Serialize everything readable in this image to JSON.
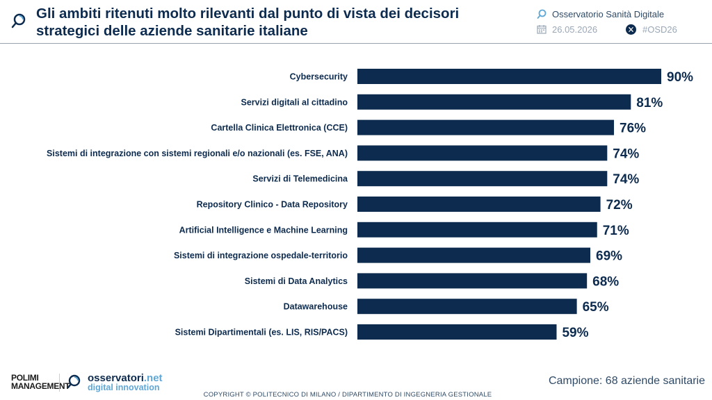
{
  "header": {
    "title": "Gli ambiti ritenuti molto rilevanti dal punto di vista dei decisori strategici delle aziende sanitarie italiane",
    "observatory": "Osservatorio Sanità Digitale",
    "date": "26.05.2026",
    "hashtag": "#OSD26"
  },
  "footer": {
    "polimi_line1": "POLIMI",
    "polimi_small": "GRADUATE SCHOOL OF",
    "polimi_line2": "MANAGEMENT",
    "osservatori_name": "osservatori",
    "osservatori_net": ".net",
    "osservatori_tag": "digital innovation",
    "sample": "Campione: 68 aziende sanitarie",
    "copyright": "COPYRIGHT © POLITECNICO DI MILANO / DIPARTIMENTO DI INGEGNERIA GESTIONALE"
  },
  "colors": {
    "bar": "#0d2b4e",
    "accent": "#5fa7d6"
  },
  "chart_data": {
    "type": "bar",
    "orientation": "horizontal",
    "title": "",
    "xlabel": "",
    "ylabel": "",
    "xlim": [
      0,
      100
    ],
    "categories": [
      "Cybersecurity",
      "Servizi digitali al cittadino",
      "Cartella Clinica Elettronica (CCE)",
      "Sistemi di integrazione con sistemi regionali e/o nazionali (es. FSE, ANA)",
      "Servizi di Telemedicina",
      "Repository Clinico - Data Repository",
      "Artificial Intelligence e Machine Learning",
      "Sistemi di integrazione ospedale-territorio",
      "Sistemi di Data Analytics",
      "Datawarehouse",
      "Sistemi Dipartimentali (es. LIS, RIS/PACS)"
    ],
    "values": [
      90,
      81,
      76,
      74,
      74,
      72,
      71,
      69,
      68,
      65,
      59
    ],
    "value_labels": [
      "90%",
      "81%",
      "76%",
      "74%",
      "74%",
      "72%",
      "71%",
      "69%",
      "68%",
      "65%",
      "59%"
    ],
    "grid": false,
    "legend": "none"
  }
}
